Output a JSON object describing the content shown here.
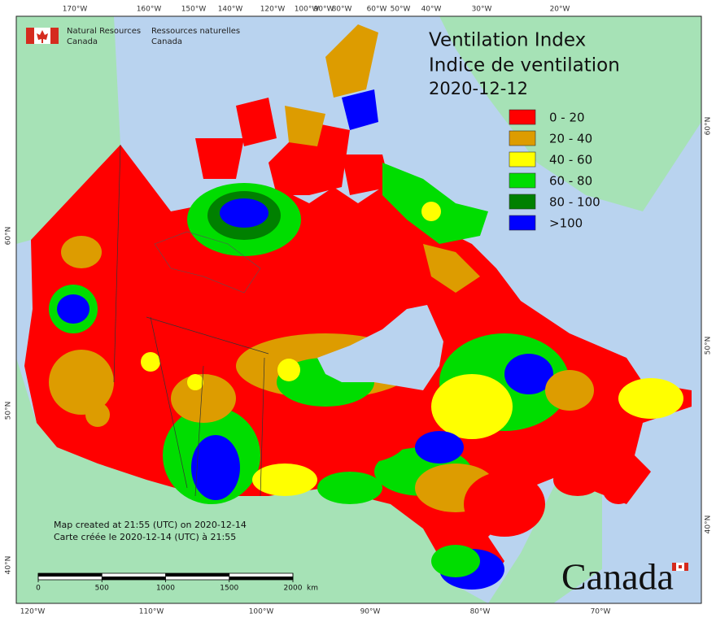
{
  "header": {
    "agency_en": [
      "Natural Resources",
      "Canada"
    ],
    "agency_fr": [
      "Ressources naturelles",
      "Canada"
    ]
  },
  "title": [
    "Ventilation Index",
    "Indice de ventilation"
  ],
  "date": "2020-12-12",
  "legend": [
    {
      "label": "0 - 20",
      "color": "#ff0000"
    },
    {
      "label": "20 - 40",
      "color": "#dd9c00"
    },
    {
      "label": "40 - 60",
      "color": "#ffff00"
    },
    {
      "label": "60 - 80",
      "color": "#00dd00"
    },
    {
      "label": "80 - 100",
      "color": "#008000"
    },
    {
      "label": ">100",
      "color": "#0000ff"
    }
  ],
  "notes": [
    "Map created at 21:55 (UTC) on 2020-12-14",
    "Carte créée le 2020-12-14 (UTC) à 21:55"
  ],
  "scale_bar": {
    "ticks": [
      0,
      500,
      1000,
      1500,
      2000
    ],
    "unit": "km"
  },
  "graticule": {
    "top": [
      "170°W",
      "160°W",
      "150°W",
      "140°W",
      "120°W",
      "100°W",
      "90°W",
      "80°W",
      "60°W",
      "50°W",
      "40°W",
      "30°W",
      "20°W"
    ],
    "bottom": [
      "120°W",
      "110°W",
      "100°W",
      "90°W",
      "80°W",
      "70°W"
    ],
    "left": [
      "60°N",
      "50°N",
      "40°N"
    ],
    "right": [
      "60°N",
      "50°N",
      "40°N"
    ]
  },
  "wordmark": "Canada"
}
